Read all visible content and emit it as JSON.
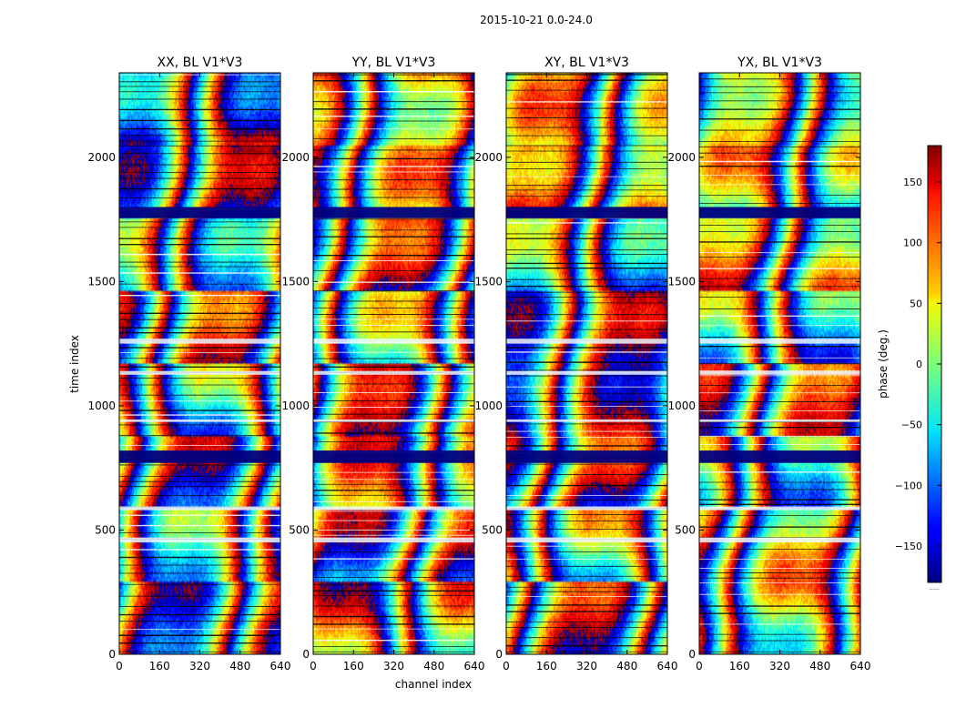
{
  "figure": {
    "suptitle": "2015-10-21 0.0-24.0"
  },
  "chart_data": {
    "type": "heatmap",
    "xlabel": "channel index",
    "ylabel": "time index",
    "xlim": [
      0,
      640
    ],
    "ylim": [
      0,
      2340
    ],
    "x_ticks": [
      0,
      160,
      320,
      480,
      640
    ],
    "y_ticks": [
      0,
      500,
      1000,
      1500,
      2000
    ],
    "panels": [
      {
        "title": "XX, BL V1*V3",
        "seed": 11
      },
      {
        "title": "YY, BL V1*V3",
        "seed": 23
      },
      {
        "title": "XY, BL V1*V3",
        "seed": 37
      },
      {
        "title": "YX, BL V1*V3",
        "seed": 53
      }
    ],
    "colorbar": {
      "label": "phase (deg.)",
      "range": [
        -180,
        180
      ],
      "ticks": [
        150,
        100,
        50,
        0,
        -50,
        -100,
        -150
      ],
      "colormap": "jet",
      "footer_text": "......"
    },
    "flag_bands": [
      [
        770,
        820
      ],
      [
        580,
        595
      ],
      [
        450,
        470
      ],
      [
        1125,
        1140
      ],
      [
        1250,
        1270
      ],
      [
        1755,
        1800
      ],
      [
        935,
        945
      ]
    ]
  }
}
